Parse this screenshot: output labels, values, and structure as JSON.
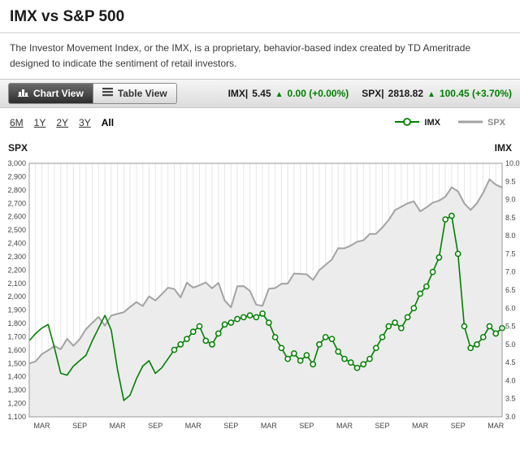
{
  "page": {
    "title": "IMX vs S&P 500",
    "description": "The Investor Movement Index, or the IMX, is a proprietary, behavior-based index created by TD Ameritrade designed to indicate the sentiment of retail investors."
  },
  "toolbar": {
    "chart_view_label": "Chart View",
    "table_view_label": "Table View",
    "quotes": [
      {
        "symbol": "IMX|",
        "value": "5.45",
        "arrow": "▲",
        "change": "0.00 (+0.00%)"
      },
      {
        "symbol": "SPX|",
        "value": "2818.82",
        "arrow": "▲",
        "change": "100.45 (+3.70%)"
      }
    ]
  },
  "ranges": {
    "options": [
      "6M",
      "1Y",
      "2Y",
      "3Y",
      "All"
    ],
    "selected": "All"
  },
  "legend": [
    {
      "name": "IMX",
      "color": "#008000"
    },
    {
      "name": "SPX",
      "color": "#a3a3a3"
    }
  ],
  "axes": {
    "left_title": "SPX",
    "right_title": "IMX"
  },
  "colors": {
    "imx_green": "#008000",
    "spx_gray": "#a3a3a3",
    "spx_fill": "#ececec",
    "up_green": "#008000",
    "grid": "#e7e7e7",
    "plot_border": "#9a9a9a",
    "axis_text": "#444444"
  },
  "chart_data": {
    "type": "line",
    "title": "IMX vs S&P 500",
    "grid": "vertical-monthly",
    "legend_position": "top-right",
    "x_tick_labels": [
      "MAR",
      "SEP",
      "MAR",
      "SEP",
      "MAR",
      "SEP",
      "MAR",
      "SEP",
      "MAR",
      "SEP",
      "MAR",
      "SEP",
      "MAR"
    ],
    "x_tick_indices": [
      2,
      8,
      14,
      20,
      26,
      32,
      38,
      44,
      50,
      56,
      62,
      68,
      74
    ],
    "left_axis": {
      "label": "SPX",
      "min": 1100,
      "max": 3000,
      "step": 100
    },
    "right_axis": {
      "label": "IMX",
      "min": 3.0,
      "max": 10.0,
      "step": 0.5
    },
    "series": [
      {
        "name": "SPX",
        "axis": "left",
        "style": "area",
        "color": "#a3a3a3",
        "fill": "#ececec",
        "values": [
          1500,
          1515,
          1570,
          1598,
          1630,
          1606,
          1685,
          1632,
          1682,
          1757,
          1805,
          1848,
          1783,
          1859,
          1872,
          1884,
          1924,
          1960,
          1930,
          2003,
          1972,
          2018,
          2068,
          2058,
          1995,
          2105,
          2068,
          2086,
          2107,
          2063,
          2104,
          1972,
          1920,
          2079,
          2080,
          2044,
          1940,
          1932,
          2060,
          2065,
          2097,
          2099,
          2174,
          2171,
          2168,
          2126,
          2199,
          2239,
          2279,
          2364,
          2363,
          2384,
          2412,
          2423,
          2470,
          2472,
          2519,
          2575,
          2648,
          2674,
          2700,
          2715,
          2640,
          2670,
          2705,
          2720,
          2750,
          2820,
          2790,
          2700,
          2650,
          2700,
          2780,
          2880,
          2840,
          2819
        ]
      },
      {
        "name": "IMX",
        "axis": "right",
        "style": "line-with-markers",
        "color": "#008000",
        "marker_start_index": 23,
        "values": [
          5.1,
          5.3,
          5.45,
          5.55,
          4.9,
          4.2,
          4.15,
          4.4,
          4.55,
          4.7,
          5.1,
          5.45,
          5.8,
          5.4,
          4.3,
          3.45,
          3.6,
          4.05,
          4.4,
          4.55,
          4.2,
          4.35,
          4.6,
          4.85,
          5.0,
          5.15,
          5.35,
          5.5,
          5.1,
          5.0,
          5.3,
          5.55,
          5.6,
          5.7,
          5.75,
          5.8,
          5.75,
          5.85,
          5.6,
          5.2,
          4.9,
          4.6,
          4.75,
          4.55,
          4.7,
          4.45,
          5.0,
          5.2,
          5.15,
          4.8,
          4.6,
          4.5,
          4.35,
          4.45,
          4.6,
          4.9,
          5.2,
          5.5,
          5.6,
          5.45,
          5.75,
          6.0,
          6.4,
          6.6,
          7.0,
          7.4,
          8.45,
          8.55,
          7.5,
          5.5,
          4.9,
          5.0,
          5.2,
          5.5,
          5.3,
          5.45
        ]
      }
    ]
  }
}
